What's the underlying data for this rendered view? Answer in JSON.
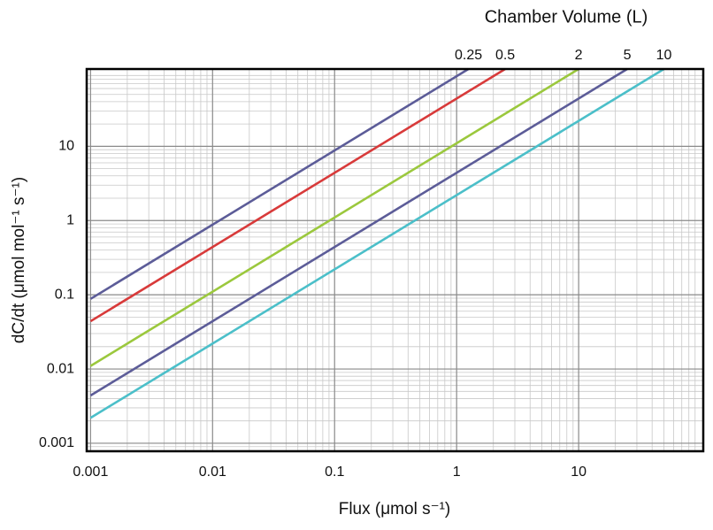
{
  "chart_data": {
    "type": "line",
    "title": "Chamber Volume (L)",
    "x_label": "Flux (μmol s⁻¹)",
    "y_label": "dC/dt (μmol mol⁻¹ s⁻¹)",
    "log_x": true,
    "log_y": true,
    "grid": true,
    "xlim": [
      0.00093,
      105
    ],
    "xticks": [
      0.001,
      0.01,
      0.1,
      1,
      10
    ],
    "ylim": [
      0.00078,
      110
    ],
    "yticks": [
      0.001,
      0.01,
      0.1,
      1,
      10
    ],
    "series": [
      {
        "name": "0.25",
        "color": "#5c5c98",
        "x": [
          0.001,
          1.25
        ],
        "values": [
          0.088,
          110
        ]
      },
      {
        "name": "0.5",
        "color": "#d83a3a",
        "x": [
          0.001,
          2.5
        ],
        "values": [
          0.044,
          110
        ]
      },
      {
        "name": "2",
        "color": "#9bc83d",
        "x": [
          0.001,
          10
        ],
        "values": [
          0.011,
          110
        ]
      },
      {
        "name": "5",
        "color": "#5c5c98",
        "x": [
          0.001,
          25
        ],
        "values": [
          0.0044,
          110
        ]
      },
      {
        "name": "10",
        "color": "#4bbfc9",
        "x": [
          0.001,
          50
        ],
        "values": [
          0.0022,
          110
        ]
      }
    ]
  }
}
